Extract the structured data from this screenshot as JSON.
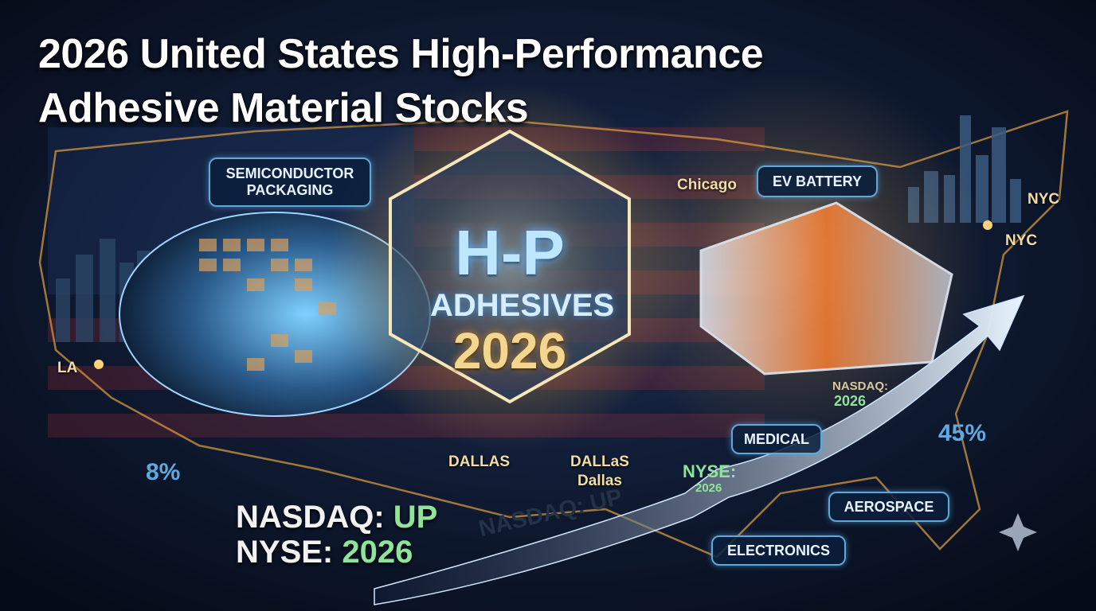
{
  "header": {
    "title_lines": [
      "2026 United States High-Performance",
      "Adhesive Material Stocks"
    ]
  },
  "badge": {
    "line1": "H-P",
    "line2": "ADHESIVES",
    "line3": "2026"
  },
  "sectors": {
    "semiconductor": [
      "SEMICONDUCTOR",
      "PACKAGING"
    ],
    "ev_battery": "EV BATTERY",
    "medical": "MEDICAL",
    "aerospace": "AEROSPACE",
    "electronics": "ELECTRONICS"
  },
  "cities": {
    "la": "LA",
    "chicago": "Chicago",
    "nyc_1": "NYC",
    "nyc_2": "NYC",
    "dallas_1": "DALLAS",
    "dallas_2": "DALLaS",
    "dallas_3": "Dallas"
  },
  "stats": {
    "left_percent": "8%",
    "right_percent": "45%"
  },
  "ticker_block": {
    "nasdaq_label": "NASDAQ:",
    "nasdaq_value": "UP",
    "nyse_label": "NYSE:",
    "nyse_value": "2026"
  },
  "arrow_label": "NASDAQ: UP",
  "map_tags": {
    "nasdaq_label": "NASDAQ:",
    "nasdaq_value": "2026",
    "nyse_label": "NYSE:",
    "nyse_value": "2026"
  }
}
